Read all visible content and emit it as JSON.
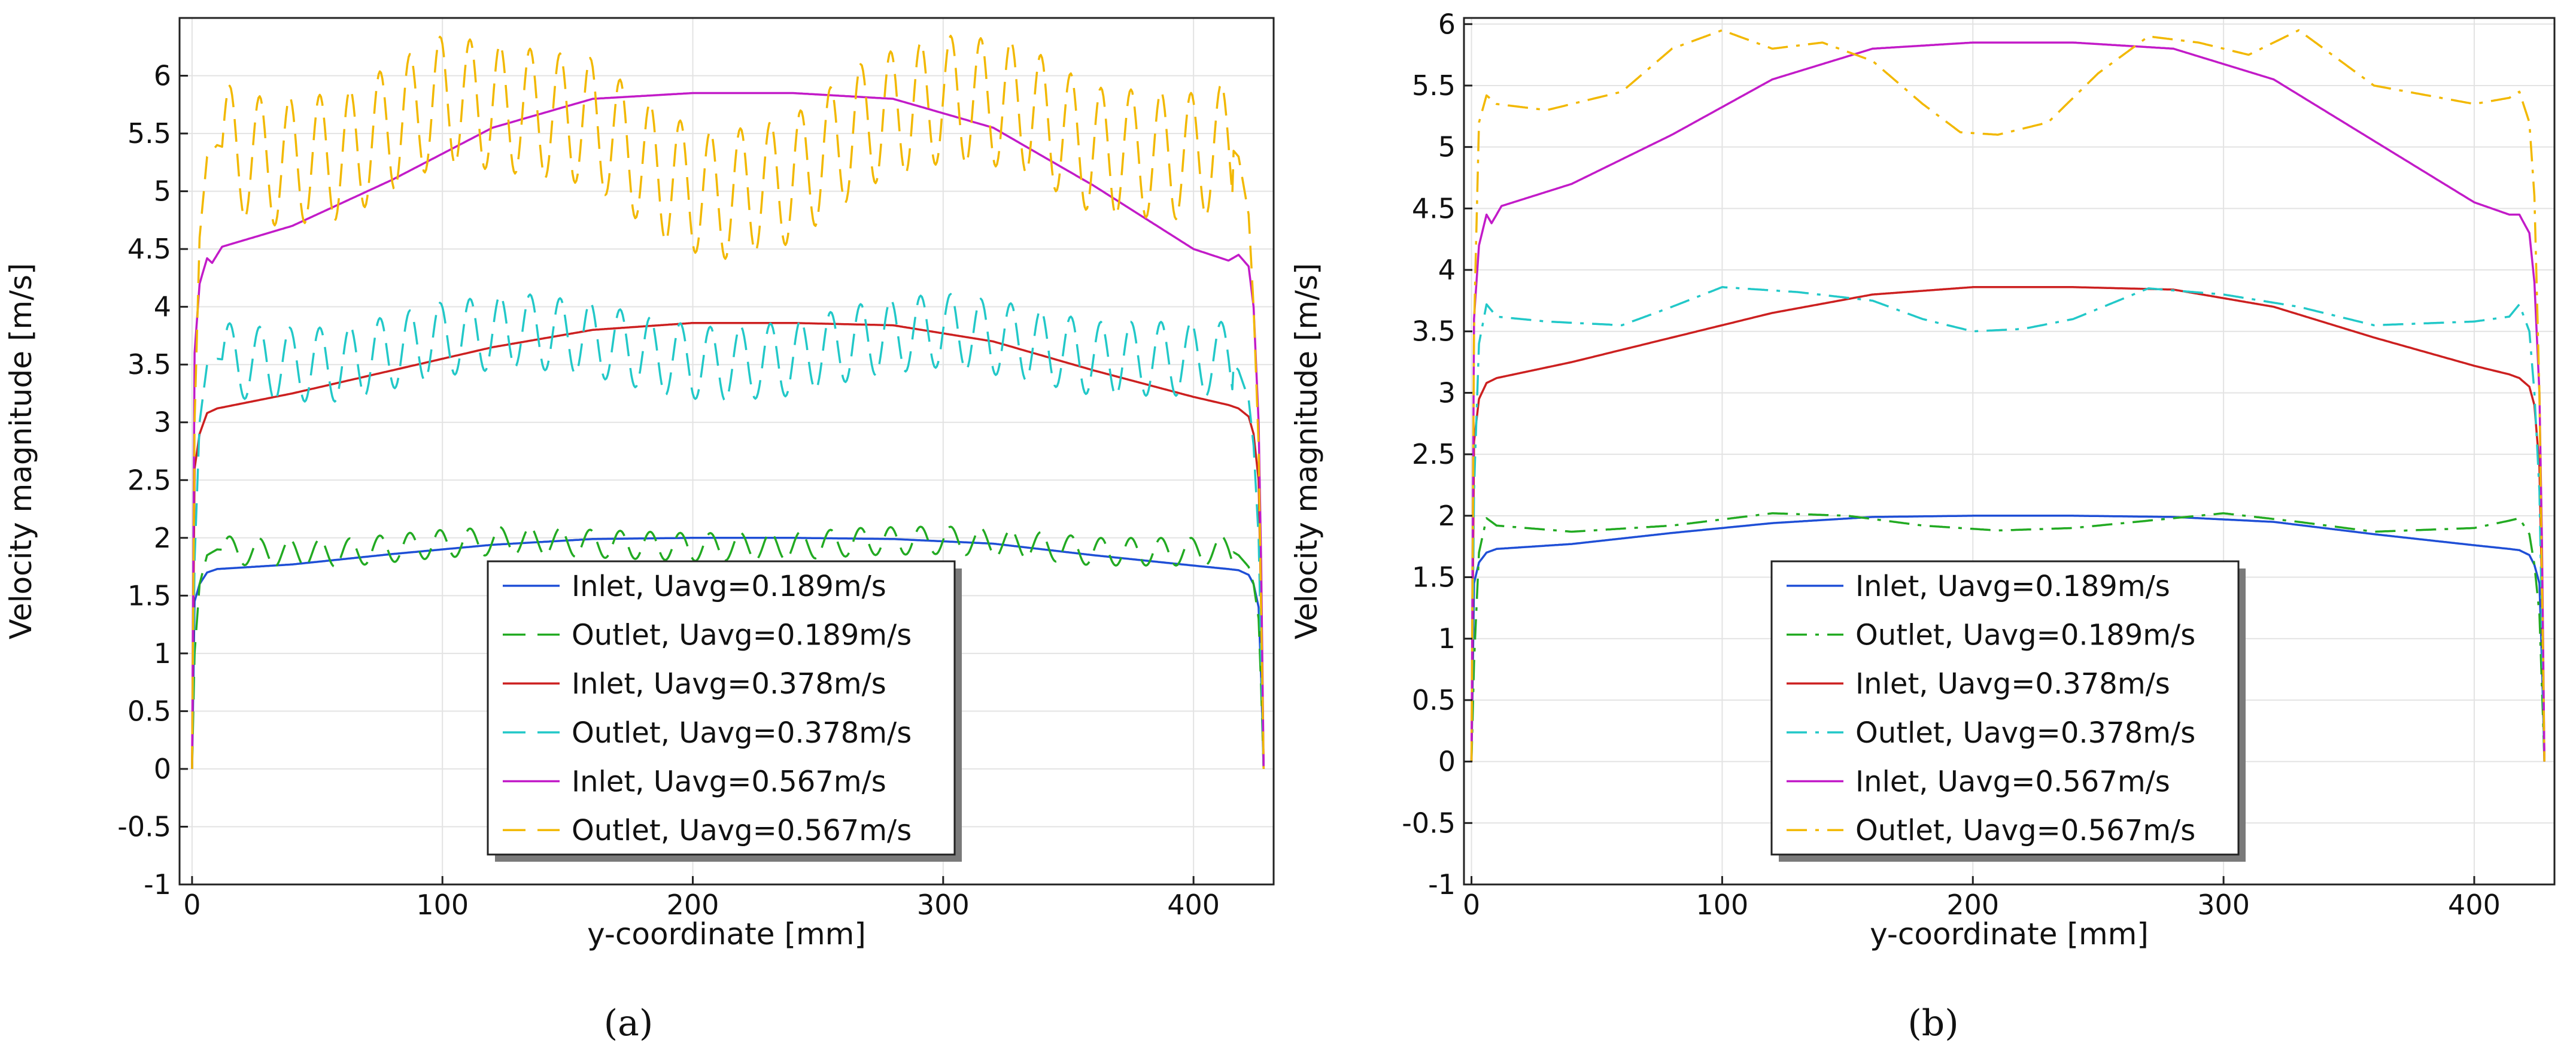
{
  "chart_data": [
    {
      "type": "line",
      "panel_label": "(a)",
      "xlabel": "y-coordinate [mm]",
      "ylabel": "Velocity magnitude [m/s]",
      "xlim": [
        -5,
        432
      ],
      "ylim": [
        -1,
        6.5
      ],
      "xticks": [
        0,
        100,
        200,
        300,
        400
      ],
      "xtick_labels": [
        "0",
        "100",
        "200",
        "300",
        "400"
      ],
      "yticks": [
        -1,
        -0.5,
        0,
        0.5,
        1,
        1.5,
        2,
        2.5,
        3,
        3.5,
        4,
        4.5,
        5,
        5.5,
        6
      ],
      "ytick_labels": [
        "-1",
        "-0.5",
        "0",
        "0.5",
        "1",
        "1.5",
        "2",
        "2.5",
        "3",
        "3.5",
        "4",
        "4.5",
        "5",
        "5.5",
        "6"
      ],
      "grid": true,
      "legend_position": "bottom-center",
      "series": [
        {
          "name": "Inlet,   Uavg=0.189m/s",
          "color": "#1f4fd6",
          "dash": "solid",
          "x": [
            0,
            1,
            3,
            6,
            10,
            40,
            80,
            120,
            160,
            200,
            240,
            280,
            320,
            360,
            400,
            414,
            418,
            422,
            424,
            426,
            427,
            428
          ],
          "y": [
            0,
            1.45,
            1.6,
            1.7,
            1.73,
            1.77,
            1.86,
            1.94,
            1.99,
            2.0,
            2.0,
            1.99,
            1.95,
            1.85,
            1.76,
            1.73,
            1.72,
            1.68,
            1.6,
            1.4,
            0.8,
            0
          ]
        },
        {
          "name": "Outlet, Uavg=0.189m/s",
          "color": "#22aa22",
          "dash": "dash",
          "x": [
            0,
            1,
            3,
            6,
            10,
            30,
            60,
            100,
            130,
            160,
            200,
            240,
            270,
            300,
            330,
            360,
            400,
            414,
            418,
            422,
            424,
            426,
            427,
            428
          ],
          "y": [
            0,
            1.0,
            1.6,
            1.85,
            1.9,
            1.87,
            1.87,
            1.95,
            1.98,
            1.95,
            1.92,
            1.93,
            1.97,
            1.98,
            1.95,
            1.88,
            1.88,
            1.9,
            1.85,
            1.75,
            1.6,
            1.3,
            0.7,
            0
          ],
          "osc_amp": 0.12,
          "osc_period": 12
        },
        {
          "name": "Inlet,   Uavg=0.378m/s",
          "color": "#cc2020",
          "dash": "solid",
          "x": [
            0,
            1,
            3,
            6,
            10,
            40,
            80,
            120,
            160,
            200,
            240,
            280,
            320,
            360,
            400,
            414,
            418,
            422,
            424,
            426,
            427,
            428
          ],
          "y": [
            0,
            2.6,
            2.9,
            3.08,
            3.12,
            3.25,
            3.45,
            3.65,
            3.8,
            3.86,
            3.86,
            3.84,
            3.7,
            3.45,
            3.22,
            3.15,
            3.12,
            3.05,
            2.9,
            2.5,
            1.4,
            0
          ]
        },
        {
          "name": "Outlet, Uavg=0.378m/s",
          "color": "#22c8c8",
          "dash": "dash",
          "x": [
            0,
            1,
            3,
            6,
            10,
            30,
            60,
            100,
            130,
            160,
            190,
            210,
            240,
            270,
            300,
            330,
            360,
            400,
            414,
            418,
            422,
            424,
            426,
            427,
            428
          ],
          "y": [
            0,
            1.8,
            3.0,
            3.5,
            3.55,
            3.5,
            3.5,
            3.72,
            3.8,
            3.72,
            3.55,
            3.5,
            3.55,
            3.72,
            3.8,
            3.7,
            3.55,
            3.55,
            3.55,
            3.45,
            3.2,
            2.8,
            2.0,
            1.0,
            0
          ],
          "osc_amp": 0.32,
          "osc_period": 12
        },
        {
          "name": "Inlet,   Uavg=0.567m/s",
          "color": "#c21bc8",
          "dash": "solid",
          "x": [
            0,
            1,
            3,
            6,
            8,
            12,
            40,
            80,
            120,
            160,
            200,
            240,
            280,
            320,
            360,
            400,
            414,
            418,
            422,
            424,
            426,
            427,
            428
          ],
          "y": [
            0,
            3.6,
            4.2,
            4.42,
            4.38,
            4.52,
            4.7,
            5.1,
            5.55,
            5.8,
            5.85,
            5.85,
            5.8,
            5.55,
            5.05,
            4.5,
            4.4,
            4.45,
            4.35,
            4.0,
            3.0,
            1.8,
            0
          ]
        },
        {
          "name": "Outlet, Uavg=0.567m/s",
          "color": "#f2b800",
          "dash": "dash",
          "x": [
            0,
            1,
            3,
            6,
            10,
            30,
            60,
            100,
            130,
            160,
            190,
            210,
            240,
            270,
            300,
            330,
            360,
            400,
            414,
            418,
            422,
            424,
            426,
            427,
            428
          ],
          "y": [
            0,
            3.0,
            4.6,
            5.3,
            5.4,
            5.25,
            5.3,
            5.8,
            5.7,
            5.6,
            5.1,
            4.95,
            5.1,
            5.6,
            5.8,
            5.75,
            5.35,
            5.3,
            5.4,
            5.3,
            4.8,
            4.0,
            2.8,
            1.4,
            0
          ],
          "osc_amp": 0.55,
          "osc_period": 12
        }
      ]
    },
    {
      "type": "line",
      "panel_label": "(b)",
      "xlabel": "y-coordinate [mm]",
      "ylabel": "Velocity magnitude [m/s]",
      "xlim": [
        -3,
        432
      ],
      "ylim": [
        -1,
        6.05
      ],
      "xticks": [
        0,
        100,
        200,
        300,
        400
      ],
      "xtick_labels": [
        "0",
        "100",
        "200",
        "300",
        "400"
      ],
      "yticks": [
        -1,
        -0.5,
        0,
        0.5,
        1,
        1.5,
        2,
        2.5,
        3,
        3.5,
        4,
        4.5,
        5,
        5.5,
        6
      ],
      "ytick_labels": [
        "-1",
        "-0.5",
        "0",
        "0.5",
        "1",
        "1.5",
        "2",
        "2.5",
        "3",
        "3.5",
        "4",
        "4.5",
        "5",
        "5.5",
        "6"
      ],
      "grid": true,
      "legend_position": "bottom-center",
      "series": [
        {
          "name": "Inlet,   Uavg=0.189m/s",
          "color": "#1f4fd6",
          "dash": "solid",
          "x": [
            0,
            1,
            3,
            6,
            10,
            40,
            80,
            120,
            160,
            200,
            240,
            280,
            320,
            360,
            400,
            414,
            418,
            422,
            424,
            426,
            427,
            428
          ],
          "y": [
            0,
            1.45,
            1.62,
            1.7,
            1.73,
            1.77,
            1.86,
            1.94,
            1.99,
            2.0,
            2.0,
            1.99,
            1.95,
            1.85,
            1.76,
            1.73,
            1.72,
            1.68,
            1.6,
            1.45,
            0.8,
            0
          ]
        },
        {
          "name": "Outlet, Uavg=0.189m/s",
          "color": "#22aa22",
          "dash": "dashdot",
          "x": [
            0,
            1,
            3,
            6,
            10,
            40,
            80,
            120,
            150,
            180,
            210,
            240,
            270,
            300,
            330,
            360,
            400,
            414,
            418,
            422,
            424,
            426,
            427,
            428
          ],
          "y": [
            0,
            0.8,
            1.7,
            1.98,
            1.92,
            1.87,
            1.92,
            2.02,
            2.0,
            1.92,
            1.88,
            1.9,
            1.96,
            2.02,
            1.95,
            1.87,
            1.9,
            1.96,
            1.98,
            1.85,
            1.6,
            1.2,
            0.6,
            0
          ]
        },
        {
          "name": "Inlet,   Uavg=0.378m/s",
          "color": "#cc2020",
          "dash": "solid",
          "x": [
            0,
            1,
            3,
            6,
            10,
            40,
            80,
            120,
            160,
            200,
            240,
            280,
            320,
            360,
            400,
            414,
            418,
            422,
            424,
            426,
            427,
            428
          ],
          "y": [
            0,
            2.6,
            2.95,
            3.08,
            3.12,
            3.25,
            3.45,
            3.65,
            3.8,
            3.86,
            3.86,
            3.84,
            3.7,
            3.45,
            3.22,
            3.15,
            3.12,
            3.05,
            2.9,
            2.4,
            1.4,
            0
          ]
        },
        {
          "name": "Outlet, Uavg=0.378m/s",
          "color": "#22c8c8",
          "dash": "dashdot",
          "x": [
            0,
            1,
            3,
            6,
            10,
            30,
            60,
            80,
            100,
            130,
            160,
            180,
            200,
            220,
            240,
            270,
            300,
            330,
            360,
            400,
            414,
            418,
            422,
            424,
            426,
            427,
            428
          ],
          "y": [
            0,
            2.2,
            3.4,
            3.72,
            3.62,
            3.58,
            3.55,
            3.7,
            3.86,
            3.82,
            3.75,
            3.6,
            3.5,
            3.52,
            3.6,
            3.85,
            3.8,
            3.7,
            3.55,
            3.58,
            3.62,
            3.72,
            3.5,
            3.0,
            2.2,
            1.1,
            0
          ]
        },
        {
          "name": "Inlet,   Uavg=0.567m/s",
          "color": "#c21bc8",
          "dash": "solid",
          "x": [
            0,
            1,
            3,
            6,
            8,
            12,
            40,
            80,
            120,
            160,
            200,
            240,
            280,
            320,
            360,
            400,
            414,
            418,
            422,
            424,
            426,
            427,
            428
          ],
          "y": [
            0,
            3.6,
            4.2,
            4.45,
            4.38,
            4.52,
            4.7,
            5.1,
            5.55,
            5.8,
            5.85,
            5.85,
            5.8,
            5.55,
            5.05,
            4.55,
            4.45,
            4.45,
            4.3,
            3.9,
            3.0,
            1.8,
            0
          ]
        },
        {
          "name": "Outlet, Uavg=0.567m/s",
          "color": "#f2b800",
          "dash": "dashdot",
          "x": [
            0,
            1,
            3,
            6,
            10,
            30,
            60,
            80,
            100,
            120,
            140,
            160,
            180,
            195,
            210,
            230,
            250,
            270,
            290,
            310,
            330,
            360,
            400,
            414,
            418,
            422,
            424,
            426,
            427,
            428
          ],
          "y": [
            0,
            3.5,
            5.2,
            5.42,
            5.35,
            5.3,
            5.45,
            5.8,
            5.95,
            5.8,
            5.85,
            5.7,
            5.35,
            5.12,
            5.1,
            5.2,
            5.6,
            5.9,
            5.85,
            5.75,
            5.95,
            5.5,
            5.35,
            5.4,
            5.45,
            5.2,
            4.6,
            3.0,
            1.5,
            0
          ]
        }
      ]
    }
  ]
}
